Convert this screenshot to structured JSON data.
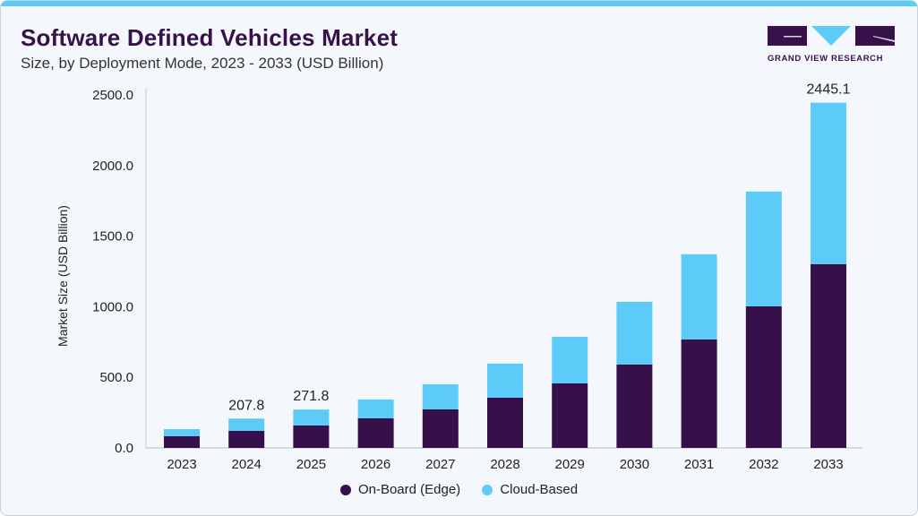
{
  "header": {
    "title": "Software Defined Vehicles Market",
    "subtitle": "Size, by Deployment Mode, 2023 - 2033 (USD Billion)"
  },
  "logo": {
    "text": "GRAND VIEW RESEARCH"
  },
  "colors": {
    "edge": "#36104a",
    "cloud": "#5ccbf7",
    "title": "#37124a",
    "accent": "#5ccbf5"
  },
  "chart_data": {
    "type": "bar",
    "stacked": true,
    "title": "Software Defined Vehicles Market",
    "ylabel": "Market Size (USD Billion)",
    "xlabel": "",
    "ylim": [
      0,
      2500
    ],
    "yticks": [
      "0.0",
      "500.0",
      "1000.0",
      "1500.0",
      "2000.0",
      "2500.0"
    ],
    "categories": [
      "2023",
      "2024",
      "2025",
      "2026",
      "2027",
      "2028",
      "2029",
      "2030",
      "2031",
      "2032",
      "2033"
    ],
    "series": [
      {
        "name": "On-Board (Edge)",
        "values": [
          83,
          121,
          159,
          210,
          273,
          356,
          457,
          591,
          768,
          1003,
          1302
        ]
      },
      {
        "name": "Cloud-Based",
        "values": [
          50,
          86.8,
          112.8,
          133,
          178,
          241,
          330,
          444,
          604,
          813,
          1143.1
        ]
      }
    ],
    "data_labels": {
      "2024": "207.8",
      "2025": "271.8",
      "2033": "2445.1"
    },
    "legend": "bottom",
    "grid": false
  }
}
